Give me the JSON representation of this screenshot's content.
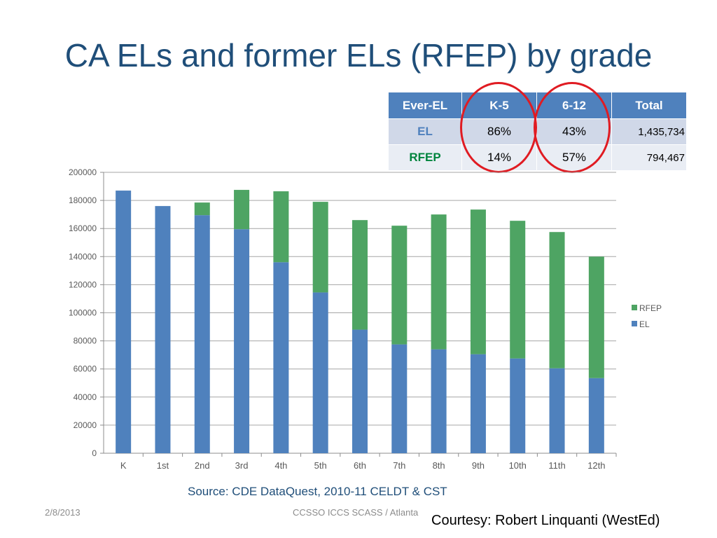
{
  "slide": {
    "title": "CA ELs and former ELs (RFEP) by grade",
    "source": "Source: CDE DataQuest, 2010-11 CELDT & CST",
    "footer_date": "2/8/2013",
    "footer_center": "CCSSO ICCS SCASS / Atlanta",
    "courtesy": "Courtesy: Robert Linquanti (WestEd)"
  },
  "table": {
    "headers": [
      "Ever-EL",
      "K-5",
      "6-12",
      "Total"
    ],
    "rows": [
      {
        "label": "EL",
        "label_color": "#4f81bd",
        "k5": "86%",
        "g612": "43%",
        "total": "1,435,734"
      },
      {
        "label": "RFEP",
        "label_color": "#00843d",
        "k5": "14%",
        "g612": "57%",
        "total": "794,467"
      }
    ],
    "highlight_color": "#e01b22"
  },
  "chart_data": {
    "type": "bar",
    "stacked": true,
    "categories": [
      "K",
      "1st",
      "2nd",
      "3rd",
      "4th",
      "5th",
      "6th",
      "7th",
      "8th",
      "9th",
      "10th",
      "11th",
      "12th"
    ],
    "series": [
      {
        "name": "EL",
        "color": "#4f81bd",
        "values": [
          187000,
          176000,
          169500,
          159500,
          136000,
          114500,
          88000,
          77500,
          74000,
          70500,
          67500,
          60500,
          53500
        ]
      },
      {
        "name": "RFEP",
        "color": "#4ea463",
        "values": [
          0,
          0,
          9000,
          28000,
          50500,
          64500,
          78000,
          84500,
          96000,
          103000,
          98000,
          97000,
          86500
        ]
      }
    ],
    "ylim": [
      0,
      200000
    ],
    "yticks": [
      "0",
      "20000",
      "40000",
      "60000",
      "80000",
      "100000",
      "120000",
      "140000",
      "160000",
      "180000",
      "200000"
    ],
    "grid": true,
    "legend": "right"
  }
}
